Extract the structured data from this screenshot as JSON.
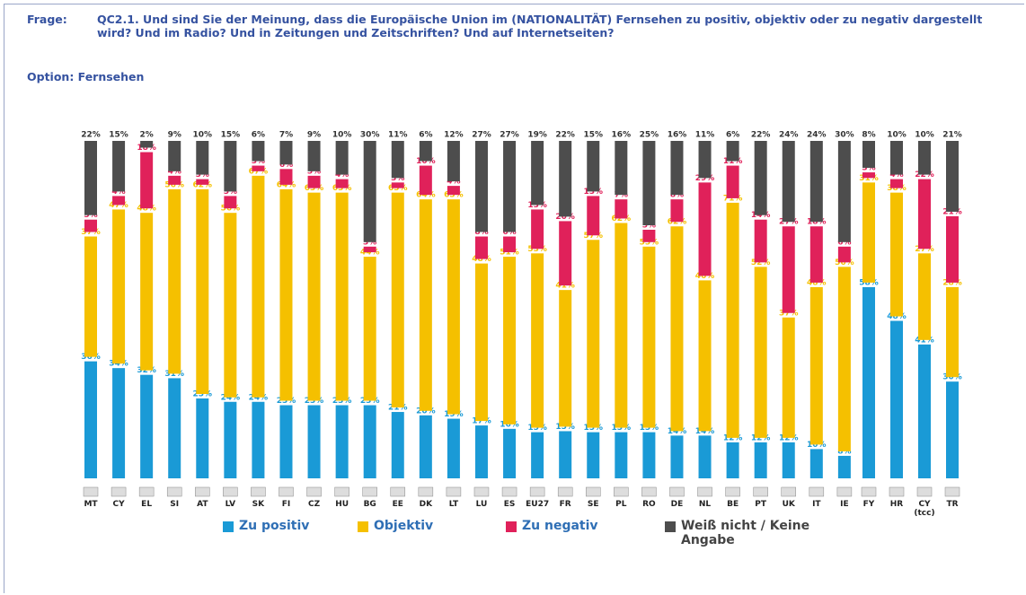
{
  "question_label": "Frage:",
  "question": "QC2.1. Und sind Sie der Meinung, dass die Europäische Union im (NATIONALITÄT) Fernsehen zu positiv, objektiv oder zu negativ dargestellt wird? Und im Radio? Und in Zeitungen und Zeitschriften? Und auf Internetseiten?",
  "option": "Option: Fernsehen",
  "chart_data": {
    "type": "stacked_bar",
    "categories": [
      "MT",
      "CY",
      "EL",
      "SI",
      "AT",
      "LV",
      "SK",
      "FI",
      "CZ",
      "HU",
      "BG",
      "EE",
      "DK",
      "LT",
      "LU",
      "ES",
      "EU27",
      "FR",
      "SE",
      "PL",
      "RO",
      "DE",
      "NL",
      "BE",
      "PT",
      "UK",
      "IT",
      "IE",
      "FY",
      "HR",
      "CY (tcc)",
      "TR"
    ],
    "series": [
      {
        "name": "Zu positiv",
        "color": "#1a9ad6",
        "values": [
          36,
          34,
          32,
          31,
          25,
          24,
          24,
          23,
          23,
          23,
          23,
          21,
          20,
          19,
          17,
          16,
          15,
          15,
          15,
          15,
          15,
          14,
          14,
          12,
          12,
          12,
          10,
          8,
          58,
          48,
          41,
          30
        ],
        "value_labels": [
          "36%",
          "34%",
          "32%",
          "31%",
          "25%",
          "24%",
          "24%",
          "23%",
          "23%",
          "23%",
          "23%",
          "21%",
          "20%",
          "19%",
          "17%",
          "16%",
          "15%",
          "15%",
          "15%",
          "15%",
          "15%",
          "14%",
          "14%",
          "12%",
          "12%",
          "12%",
          "10%",
          "8%",
          "58%",
          "48%",
          "41%",
          "30%"
        ]
      },
      {
        "name": "Objektiv",
        "color": "#f5c000",
        "values": [
          37,
          47,
          48,
          56,
          62,
          56,
          67,
          64,
          63,
          63,
          44,
          65,
          64,
          65,
          48,
          51,
          53,
          41,
          57,
          62,
          55,
          62,
          46,
          71,
          52,
          37,
          48,
          56,
          31,
          38,
          27,
          28
        ],
        "value_labels": [
          "37%",
          "47%",
          "48%",
          "56%",
          "62%",
          "56%",
          "67%",
          "64%",
          "63%",
          "63%",
          "44%",
          "65%",
          "64%",
          "65%",
          "48%",
          "51%",
          "53%",
          "41%",
          "57%",
          "62%",
          "55%",
          "62%",
          "46%",
          "71%",
          "52%",
          "37%",
          "48%",
          "56%",
          "31%",
          "38%",
          "27%",
          "28%"
        ]
      },
      {
        "name": "Zu negativ",
        "color": "#e0215a",
        "values": [
          5,
          4,
          18,
          4,
          3,
          5,
          3,
          6,
          5,
          4,
          3,
          3,
          10,
          4,
          8,
          6,
          13,
          20,
          13,
          7,
          5,
          8,
          29,
          11,
          14,
          27,
          18,
          6,
          3,
          4,
          22,
          21
        ],
        "value_labels": [
          "5%",
          "4%",
          "18%",
          "4%",
          "3%",
          "5%",
          "3%",
          "6%",
          "5%",
          "4%",
          "3%",
          "3%",
          "10%",
          "4%",
          "8%",
          "6%",
          "13%",
          "20%",
          "13%",
          "7%",
          "5%",
          "8%",
          "29%",
          "11%",
          "14%",
          "27%",
          "18%",
          "6%",
          "3%",
          "4%",
          "22%",
          "21%"
        ]
      },
      {
        "name": "Weiß nicht / Keine Angabe",
        "color": "#4d4d4d",
        "values": [
          22,
          15,
          2,
          9,
          10,
          15,
          6,
          7,
          9,
          10,
          30,
          11,
          6,
          12,
          27,
          27,
          19,
          22,
          15,
          16,
          25,
          16,
          11,
          6,
          22,
          24,
          24,
          30,
          8,
          10,
          10,
          21
        ],
        "value_labels": [
          "22%",
          "15%",
          "2%",
          "9%",
          "10%",
          "15%",
          "6%",
          "7%",
          "9%",
          "10%",
          "30%",
          "11%",
          "6%",
          "12%",
          "27%",
          "27%",
          "19%",
          "22%",
          "15%",
          "16%",
          "25%",
          "16%",
          "11%",
          "6%",
          "22%",
          "24%",
          "24%",
          "30%",
          "8%",
          "10%",
          "10%",
          "21%"
        ]
      }
    ]
  }
}
